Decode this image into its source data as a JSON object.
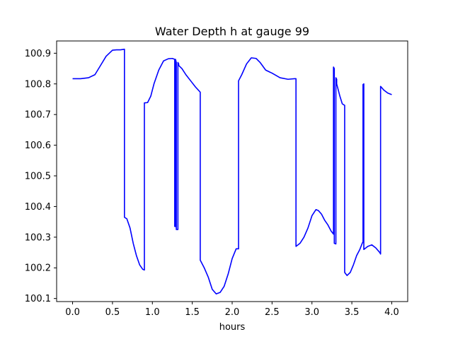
{
  "chart_data": {
    "type": "line",
    "title": "Water Depth h at gauge 99",
    "xlabel": "hours",
    "ylabel": "",
    "xlim": [
      -0.2,
      4.2
    ],
    "ylim": [
      100.09,
      100.94
    ],
    "grid": false,
    "x_ticks": [
      0.0,
      0.5,
      1.0,
      1.5,
      2.0,
      2.5,
      3.0,
      3.5,
      4.0
    ],
    "x_tick_labels": [
      "0.0",
      "0.5",
      "1.0",
      "1.5",
      "2.0",
      "2.5",
      "3.0",
      "3.5",
      "4.0"
    ],
    "y_ticks": [
      100.1,
      100.2,
      100.3,
      100.4,
      100.5,
      100.6,
      100.7,
      100.8,
      100.9
    ],
    "y_tick_labels": [
      "100.1",
      "100.2",
      "100.3",
      "100.4",
      "100.5",
      "100.6",
      "100.7",
      "100.8",
      "100.9"
    ],
    "series": [
      {
        "color": "#0000ff",
        "x": [
          0.0,
          0.1,
          0.2,
          0.28,
          0.35,
          0.42,
          0.5,
          0.55,
          0.6,
          0.65,
          0.65,
          0.68,
          0.72,
          0.76,
          0.8,
          0.84,
          0.88,
          0.9,
          0.9,
          0.94,
          0.98,
          1.02,
          1.08,
          1.14,
          1.2,
          1.25,
          1.28,
          1.28,
          1.29,
          1.29,
          1.3,
          1.3,
          1.32,
          1.32,
          1.33,
          1.33,
          1.37,
          1.42,
          1.48,
          1.54,
          1.6,
          1.6,
          1.65,
          1.7,
          1.75,
          1.8,
          1.85,
          1.9,
          1.95,
          2.0,
          2.05,
          2.08,
          2.08,
          2.12,
          2.18,
          2.24,
          2.3,
          2.35,
          2.42,
          2.5,
          2.6,
          2.7,
          2.78,
          2.8,
          2.8,
          2.85,
          2.9,
          2.95,
          3.0,
          3.05,
          3.08,
          3.12,
          3.16,
          3.2,
          3.24,
          3.27,
          3.27,
          3.28,
          3.28,
          3.3,
          3.3,
          3.31,
          3.31,
          3.35,
          3.38,
          3.41,
          3.41,
          3.44,
          3.48,
          3.52,
          3.56,
          3.6,
          3.63,
          3.64,
          3.64,
          3.65,
          3.65,
          3.7,
          3.75,
          3.8,
          3.85,
          3.86,
          3.86,
          3.9,
          3.95,
          4.0
        ],
        "y": [
          100.817,
          100.817,
          100.82,
          100.83,
          100.86,
          100.89,
          100.91,
          100.911,
          100.911,
          100.913,
          100.365,
          100.36,
          100.33,
          100.28,
          100.24,
          100.21,
          100.195,
          100.193,
          100.738,
          100.739,
          100.76,
          100.8,
          100.845,
          100.875,
          100.882,
          100.883,
          100.88,
          100.335,
          100.335,
          100.88,
          100.87,
          100.325,
          100.325,
          100.87,
          100.865,
          100.86,
          100.85,
          100.83,
          100.81,
          100.79,
          100.773,
          100.225,
          100.2,
          100.17,
          100.13,
          100.115,
          100.12,
          100.14,
          100.18,
          100.23,
          100.262,
          100.262,
          100.81,
          100.83,
          100.865,
          100.885,
          100.883,
          100.87,
          100.845,
          100.835,
          100.82,
          100.815,
          100.817,
          100.817,
          100.27,
          100.28,
          100.3,
          100.33,
          100.37,
          100.39,
          100.387,
          100.375,
          100.355,
          100.34,
          100.32,
          100.31,
          100.855,
          100.85,
          100.28,
          100.278,
          100.82,
          100.815,
          100.8,
          100.76,
          100.735,
          100.73,
          100.185,
          100.175,
          100.185,
          100.21,
          100.24,
          100.26,
          100.28,
          100.285,
          100.798,
          100.8,
          100.26,
          100.27,
          100.275,
          100.265,
          100.25,
          100.245,
          100.792,
          100.78,
          100.77,
          100.765
        ]
      }
    ]
  }
}
